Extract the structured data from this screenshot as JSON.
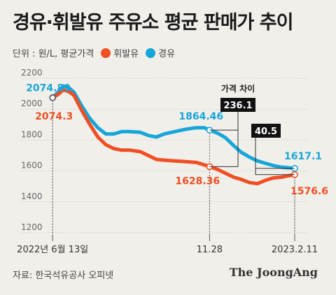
{
  "title": "경유·휘발유 주유소 평균 판매가 추이",
  "subtitle": {
    "unit_label": "단위 : 원/L, 평균가격",
    "legend": [
      {
        "name": "휘발유",
        "color": "#f04e23"
      },
      {
        "name": "경유",
        "color": "#17a6d9"
      }
    ]
  },
  "source": "자료: 한국석유공사 오피넷",
  "logo": "The JoongAng",
  "chart_data": {
    "type": "line",
    "ylim": [
      1200,
      2200
    ],
    "yticks": [
      1200,
      1400,
      1600,
      1800,
      2000,
      2200
    ],
    "xlim": [
      0,
      100
    ],
    "xticks": [
      {
        "x": 4,
        "label": "2022년 6월 13일"
      },
      {
        "x": 63,
        "label": "11.28"
      },
      {
        "x": 95,
        "label": "2023.2.11"
      }
    ],
    "series": [
      {
        "name": "경유",
        "color": "#17a6d9",
        "points": [
          [
            4,
            2074.89
          ],
          [
            6,
            2110
          ],
          [
            8,
            2150
          ],
          [
            10,
            2140
          ],
          [
            12,
            2110
          ],
          [
            15,
            2020
          ],
          [
            18,
            1940
          ],
          [
            21,
            1880
          ],
          [
            24,
            1840
          ],
          [
            27,
            1840
          ],
          [
            30,
            1855
          ],
          [
            33,
            1855
          ],
          [
            37,
            1850
          ],
          [
            40,
            1830
          ],
          [
            43,
            1820
          ],
          [
            46,
            1840
          ],
          [
            50,
            1855
          ],
          [
            54,
            1870
          ],
          [
            58,
            1880
          ],
          [
            61,
            1880
          ],
          [
            63,
            1864.46
          ],
          [
            66,
            1845
          ],
          [
            69,
            1815
          ],
          [
            72,
            1765
          ],
          [
            75,
            1720
          ],
          [
            78,
            1690
          ],
          [
            81,
            1665
          ],
          [
            84,
            1650
          ],
          [
            87,
            1635
          ],
          [
            90,
            1625
          ],
          [
            95,
            1617.1
          ]
        ]
      },
      {
        "name": "휘발유",
        "color": "#f04e23",
        "points": [
          [
            4,
            2074.3
          ],
          [
            6,
            2095
          ],
          [
            8,
            2125
          ],
          [
            10,
            2115
          ],
          [
            12,
            2090
          ],
          [
            15,
            1990
          ],
          [
            18,
            1900
          ],
          [
            21,
            1820
          ],
          [
            24,
            1770
          ],
          [
            27,
            1745
          ],
          [
            30,
            1735
          ],
          [
            33,
            1735
          ],
          [
            37,
            1725
          ],
          [
            40,
            1700
          ],
          [
            43,
            1675
          ],
          [
            46,
            1670
          ],
          [
            50,
            1665
          ],
          [
            54,
            1660
          ],
          [
            58,
            1655
          ],
          [
            61,
            1640
          ],
          [
            63,
            1628.36
          ],
          [
            66,
            1610
          ],
          [
            69,
            1585
          ],
          [
            72,
            1560
          ],
          [
            75,
            1545
          ],
          [
            78,
            1525
          ],
          [
            81,
            1518
          ],
          [
            84,
            1540
          ],
          [
            87,
            1555
          ],
          [
            90,
            1560
          ],
          [
            95,
            1576.6
          ]
        ]
      }
    ],
    "value_labels": [
      {
        "text": "2074.89",
        "series": "경유",
        "x": 4
      },
      {
        "text": "2074.3",
        "series": "휘발유",
        "x": 4
      },
      {
        "text": "1864.46",
        "series": "경유",
        "x": 63
      },
      {
        "text": "1628.36",
        "series": "휘발유",
        "x": 63
      },
      {
        "text": "1617.1",
        "series": "경유",
        "x": 95
      },
      {
        "text": "1576.6",
        "series": "휘발유",
        "x": 95
      }
    ],
    "gap_annotations": [
      {
        "x": 63,
        "label": "236.1",
        "header": "가격 차이"
      },
      {
        "x": 95,
        "label": "40.5",
        "header": ""
      }
    ]
  }
}
